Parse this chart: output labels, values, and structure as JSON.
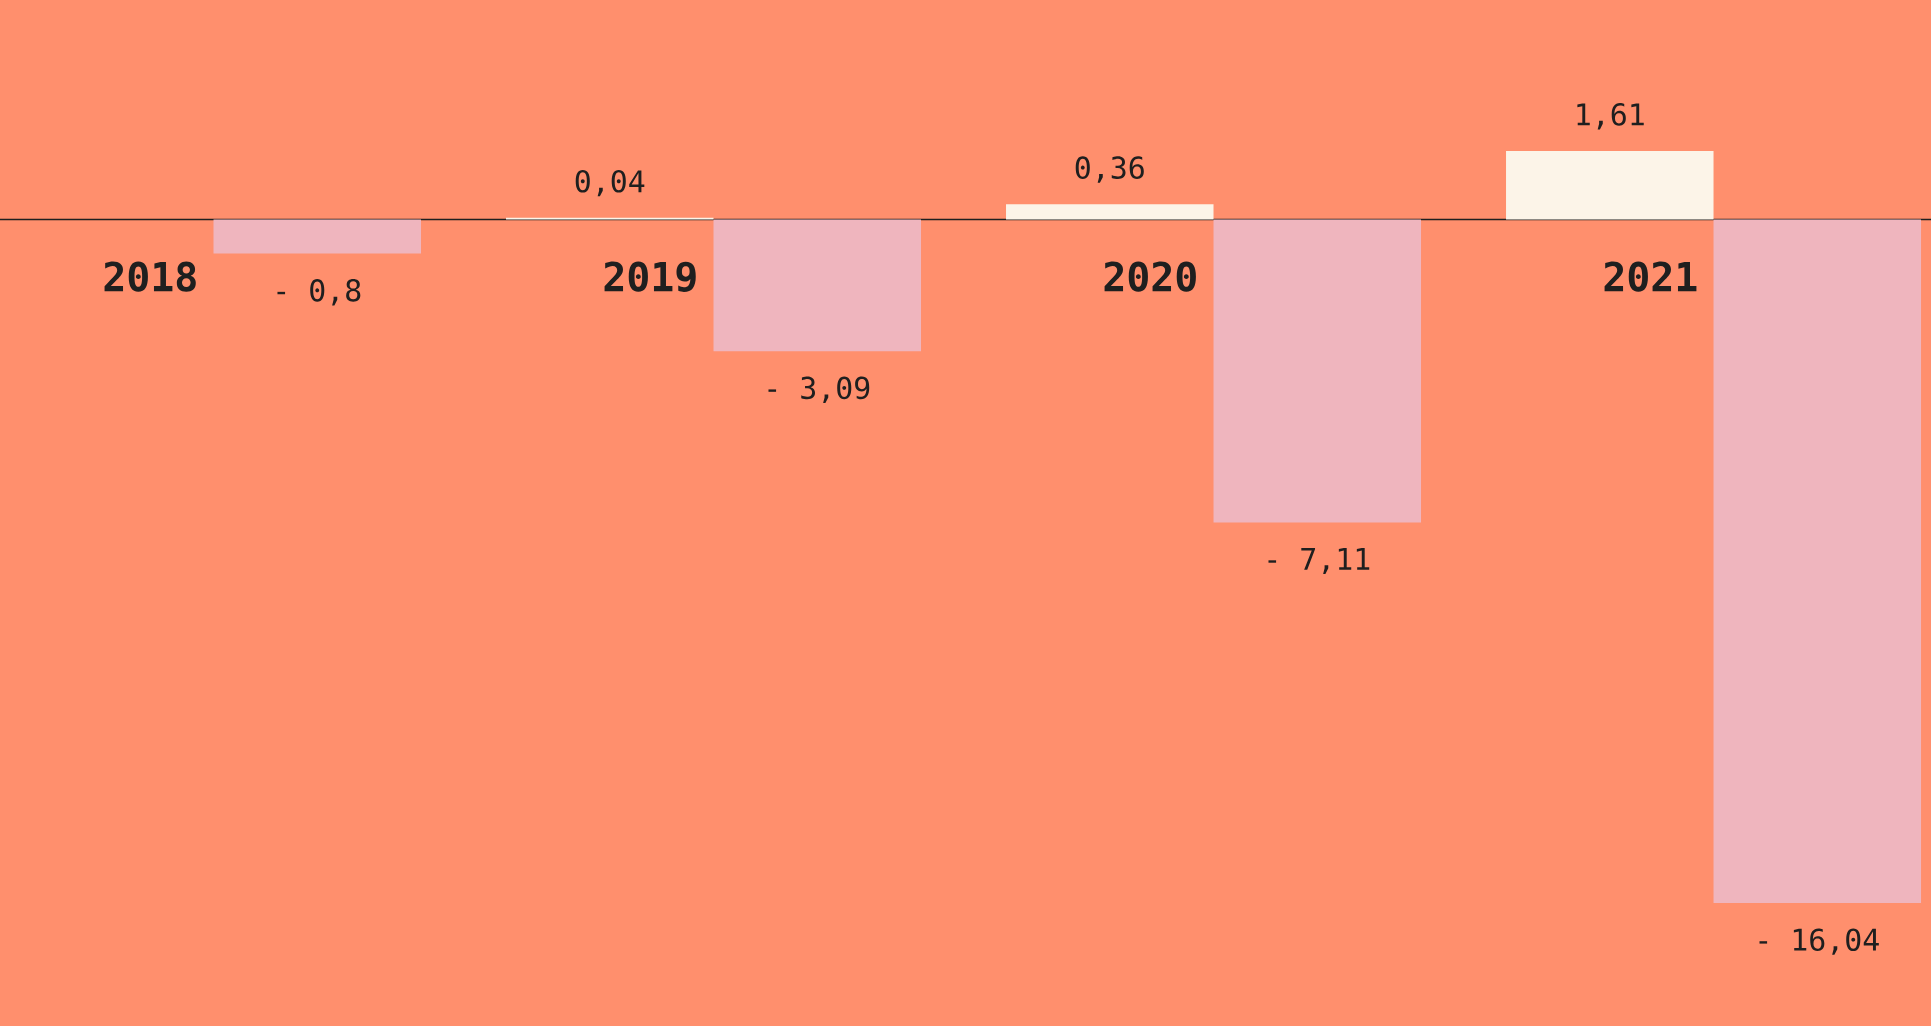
{
  "chart_data": {
    "type": "bar",
    "categories": [
      "2018",
      "2019",
      "2020",
      "2021"
    ],
    "series": [
      {
        "color": "#fcf4e8",
        "values": [
          null,
          0.04,
          0.36,
          1.61
        ],
        "value_labels": [
          null,
          "0,04",
          "0,36",
          "1,61"
        ]
      },
      {
        "color": "#efb5be",
        "values": [
          -0.8,
          -3.09,
          -7.11,
          -16.04
        ],
        "value_labels": [
          "- 0,8",
          "- 3,09",
          "- 7,11",
          "- 16,04"
        ]
      }
    ],
    "grid": false
  }
}
